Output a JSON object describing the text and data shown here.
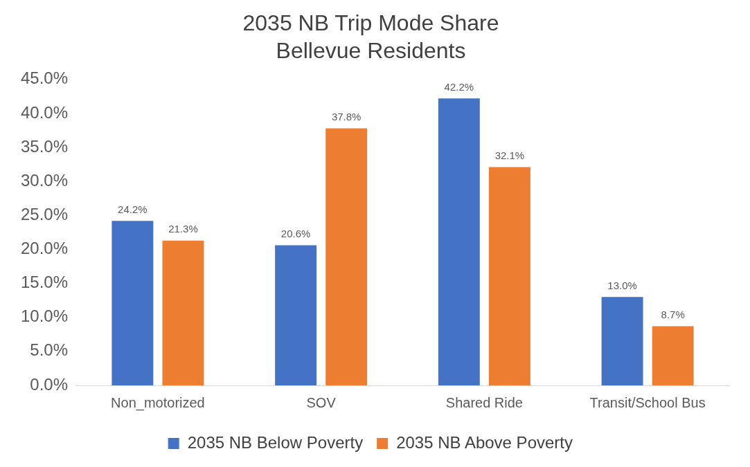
{
  "chart_data": {
    "type": "bar",
    "title": "2035 NB Trip Mode Share",
    "subtitle": "Bellevue Residents",
    "categories": [
      "Non_motorized",
      "SOV",
      "Shared Ride",
      "Transit/School Bus"
    ],
    "series": [
      {
        "name": "2035 NB Below Poverty",
        "color": "#4472c4",
        "values": [
          24.2,
          20.6,
          42.2,
          13.0
        ],
        "value_labels": [
          "24.2%",
          "20.6%",
          "42.2%",
          "13.0%"
        ]
      },
      {
        "name": "2035 NB Above Poverty",
        "color": "#ed7d31",
        "values": [
          21.3,
          37.8,
          32.1,
          8.7
        ],
        "value_labels": [
          "21.3%",
          "37.8%",
          "32.1%",
          "8.7%"
        ]
      }
    ],
    "ylim": [
      0,
      45
    ],
    "yticks": [
      {
        "value": 0,
        "label": "0.0%"
      },
      {
        "value": 5,
        "label": "5.0%"
      },
      {
        "value": 10,
        "label": "10.0%"
      },
      {
        "value": 15,
        "label": "15.0%"
      },
      {
        "value": 20,
        "label": "20.0%"
      },
      {
        "value": 25,
        "label": "25.0%"
      },
      {
        "value": 30,
        "label": "30.0%"
      },
      {
        "value": 35,
        "label": "35.0%"
      },
      {
        "value": 40,
        "label": "40.0%"
      },
      {
        "value": 45,
        "label": "45.0%"
      }
    ],
    "grid": false,
    "legend": "bottom"
  }
}
